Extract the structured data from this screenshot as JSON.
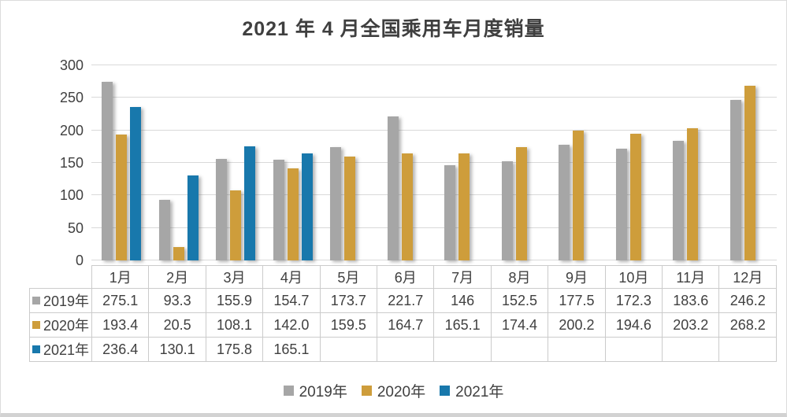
{
  "title": "2021 年 4 月全国乘用车月度销量",
  "colors": {
    "series_2019": "#A6A6A6",
    "series_2020": "#CE9D3B",
    "series_2021": "#1878AC",
    "text": "#404040",
    "gridline": "#D9D9D9",
    "table_border": "#CBCBCB"
  },
  "chart_data": {
    "type": "bar",
    "title": "2021 年 4 月全国乘用车月度销量",
    "xlabel": "",
    "ylabel": "",
    "categories": [
      "1月",
      "2月",
      "3月",
      "4月",
      "5月",
      "6月",
      "7月",
      "8月",
      "9月",
      "10月",
      "11月",
      "12月"
    ],
    "series": [
      {
        "name": "2019年",
        "color": "#A6A6A6",
        "values": [
          275.1,
          93.3,
          155.9,
          154.7,
          173.7,
          221.7,
          146,
          152.5,
          177.5,
          172.3,
          183.6,
          246.2
        ],
        "display": [
          "275.1",
          "93.3",
          "155.9",
          "154.7",
          "173.7",
          "221.7",
          "146",
          "152.5",
          "177.5",
          "172.3",
          "183.6",
          "246.2"
        ]
      },
      {
        "name": "2020年",
        "color": "#CE9D3B",
        "values": [
          193.4,
          20.5,
          108.1,
          142.0,
          159.5,
          164.7,
          165.1,
          174.4,
          200.2,
          194.6,
          203.2,
          268.2
        ],
        "display": [
          "193.4",
          "20.5",
          "108.1",
          "142.0",
          "159.5",
          "164.7",
          "165.1",
          "174.4",
          "200.2",
          "194.6",
          "203.2",
          "268.2"
        ]
      },
      {
        "name": "2021年",
        "color": "#1878AC",
        "values": [
          236.4,
          130.1,
          175.8,
          165.1,
          null,
          null,
          null,
          null,
          null,
          null,
          null,
          null
        ],
        "display": [
          "236.4",
          "130.1",
          "175.8",
          "165.1",
          "",
          "",
          "",
          "",
          "",
          "",
          "",
          ""
        ]
      }
    ],
    "ylim": [
      0,
      300
    ],
    "yticks": [
      0,
      50,
      100,
      150,
      200,
      250,
      300
    ],
    "grid": true,
    "legend_position": "bottom",
    "data_table_shown": true
  }
}
